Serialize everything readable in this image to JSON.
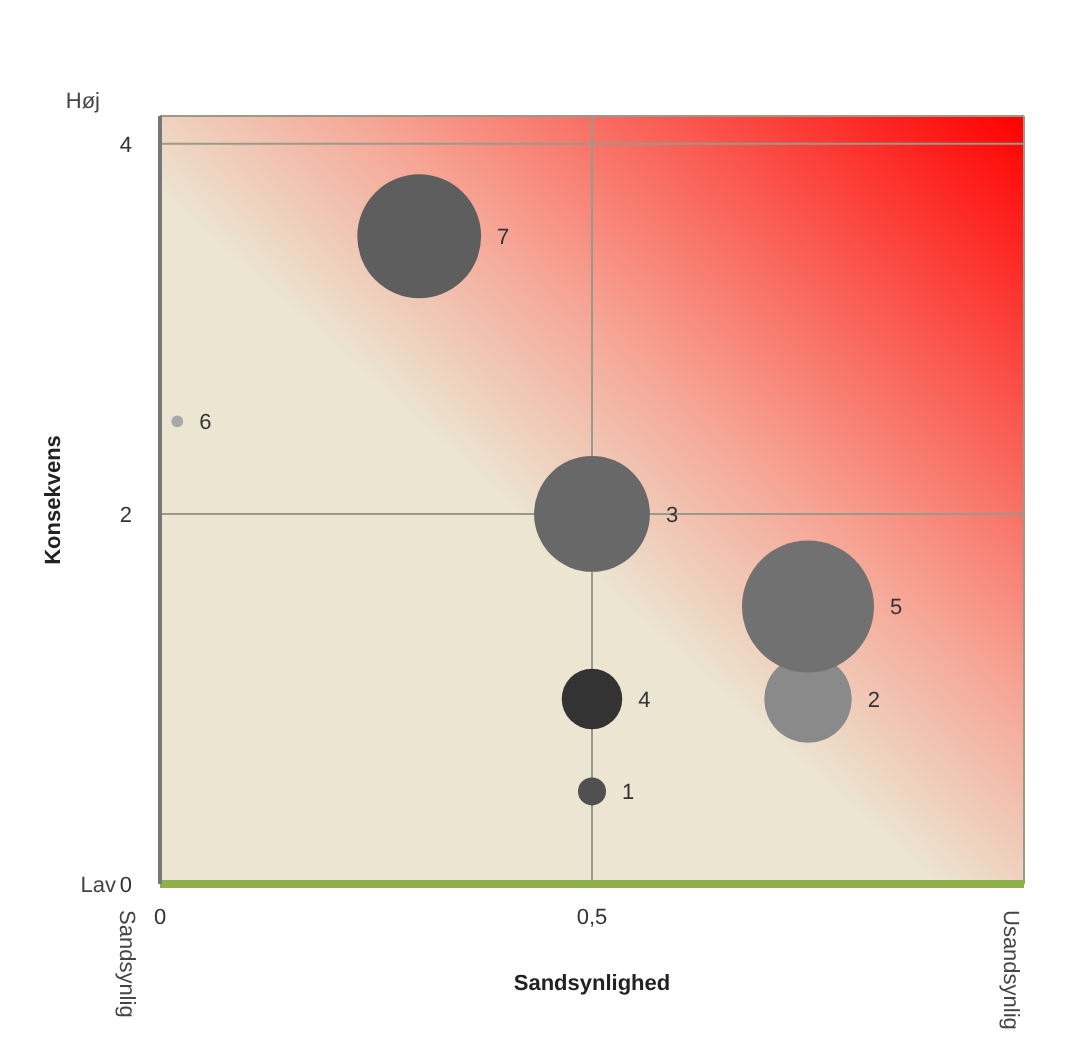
{
  "chart_data": {
    "type": "bubble",
    "xlabel": "Sandsynlighed",
    "ylabel": "Konsekvens",
    "x": [
      0.5,
      0.75,
      0.5,
      0.5,
      0.75,
      0.02,
      0.3
    ],
    "values": [
      0.5,
      1,
      2,
      1,
      1.5,
      2.5,
      3.5
    ],
    "sizes": [
      0.045,
      0.44,
      0.77,
      0.21,
      1,
      0.008,
      0.88
    ],
    "colors": [
      "#505050",
      "#8a8a8a",
      "#686868",
      "#333333",
      "#717171",
      "#a8a8a8",
      "#5e5e5e"
    ],
    "xlim": [
      0,
      1
    ],
    "xticks": [
      0,
      {
        "value": 0.5,
        "label": "0,5"
      }
    ],
    "ylim": [
      0,
      4.15
    ],
    "yticks": [
      0,
      2,
      4
    ],
    "grid": true,
    "annotations": [
      "1",
      "2",
      "3",
      "4",
      "5",
      "6",
      "7",
      "Høj",
      "Lav",
      "Sandsynlig",
      "Usandsynlig"
    ]
  }
}
